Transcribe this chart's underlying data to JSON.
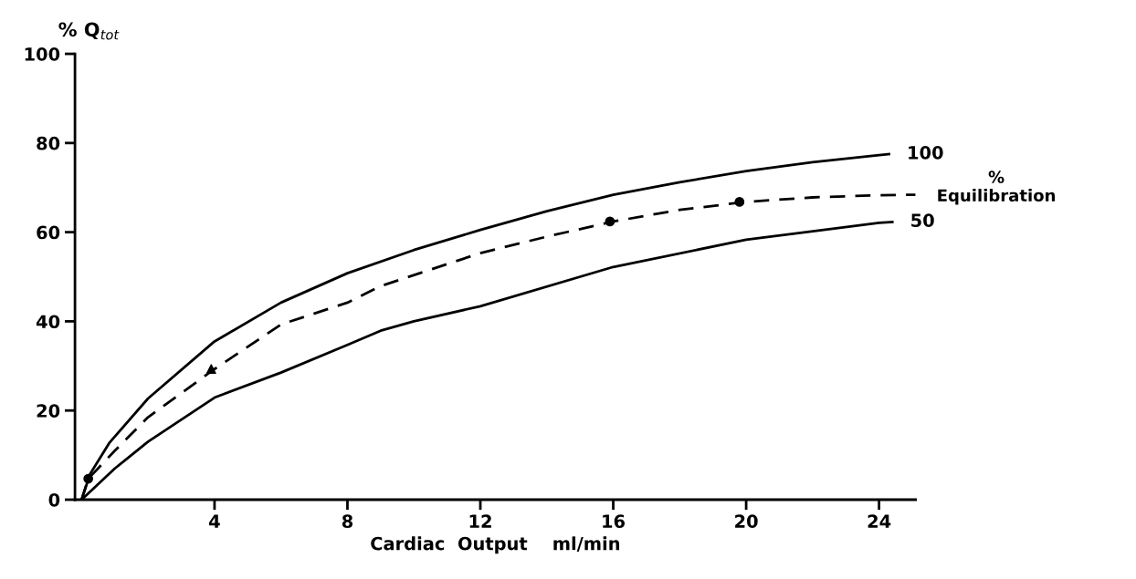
{
  "chart_data": {
    "type": "line",
    "xlabel": "Cardiac  Output    ml/min",
    "ylabel": "% Q$_{tot}$",
    "xlim": [
      -0.2,
      25.1
    ],
    "ylim": [
      0,
      100
    ],
    "xticks": [
      4,
      8,
      12,
      16,
      20,
      24
    ],
    "yticks": [
      0,
      20,
      40,
      60,
      80,
      100
    ],
    "grid": false,
    "legend": false,
    "series": [
      {
        "name": "100",
        "color": "#000000",
        "line_style": "solid",
        "marker": "none",
        "x": [
          0,
          0.25,
          0.83,
          2,
          4,
          6,
          8,
          10,
          12,
          14,
          16,
          18,
          20,
          22,
          24,
          24.3
        ],
        "values": [
          0,
          5.7,
          12.7,
          22.7,
          35.5,
          44.2,
          50.8,
          56,
          60.5,
          64.7,
          68.4,
          71.2,
          73.7,
          75.7,
          77.3,
          77.5
        ]
      },
      {
        "color": "#000000",
        "line_style": "dashed",
        "marker": "none",
        "x": [
          0,
          0.2,
          1,
          2,
          4,
          6,
          8,
          9,
          12,
          14,
          16,
          18,
          20,
          22,
          24,
          25.1
        ],
        "values": [
          0,
          4.7,
          11,
          18.5,
          29.3,
          39.3,
          44.2,
          47.9,
          55.3,
          59,
          62.4,
          65,
          66.8,
          67.8,
          68.3,
          68.4
        ]
      },
      {
        "name": "50",
        "color": "#000000",
        "line_style": "solid",
        "marker": "none",
        "x": [
          0,
          1,
          2,
          4,
          6,
          8,
          9,
          10,
          12,
          16,
          20,
          24,
          24.4
        ],
        "values": [
          0,
          7,
          13,
          22.9,
          28.5,
          34.7,
          37.9,
          40,
          43.4,
          52.2,
          58.3,
          62.1,
          62.3
        ]
      },
      {
        "type": "scatter",
        "color": "#000000",
        "marker": "circle",
        "x": [
          0.2,
          15.9,
          19.8
        ],
        "values": [
          4.7,
          62.4,
          66.8
        ]
      },
      {
        "type": "scatter",
        "color": "#000000",
        "marker": "triangle",
        "x": [
          3.9
        ],
        "values": [
          29.3
        ]
      }
    ],
    "annotations": [
      "%\nEquilibration"
    ]
  }
}
